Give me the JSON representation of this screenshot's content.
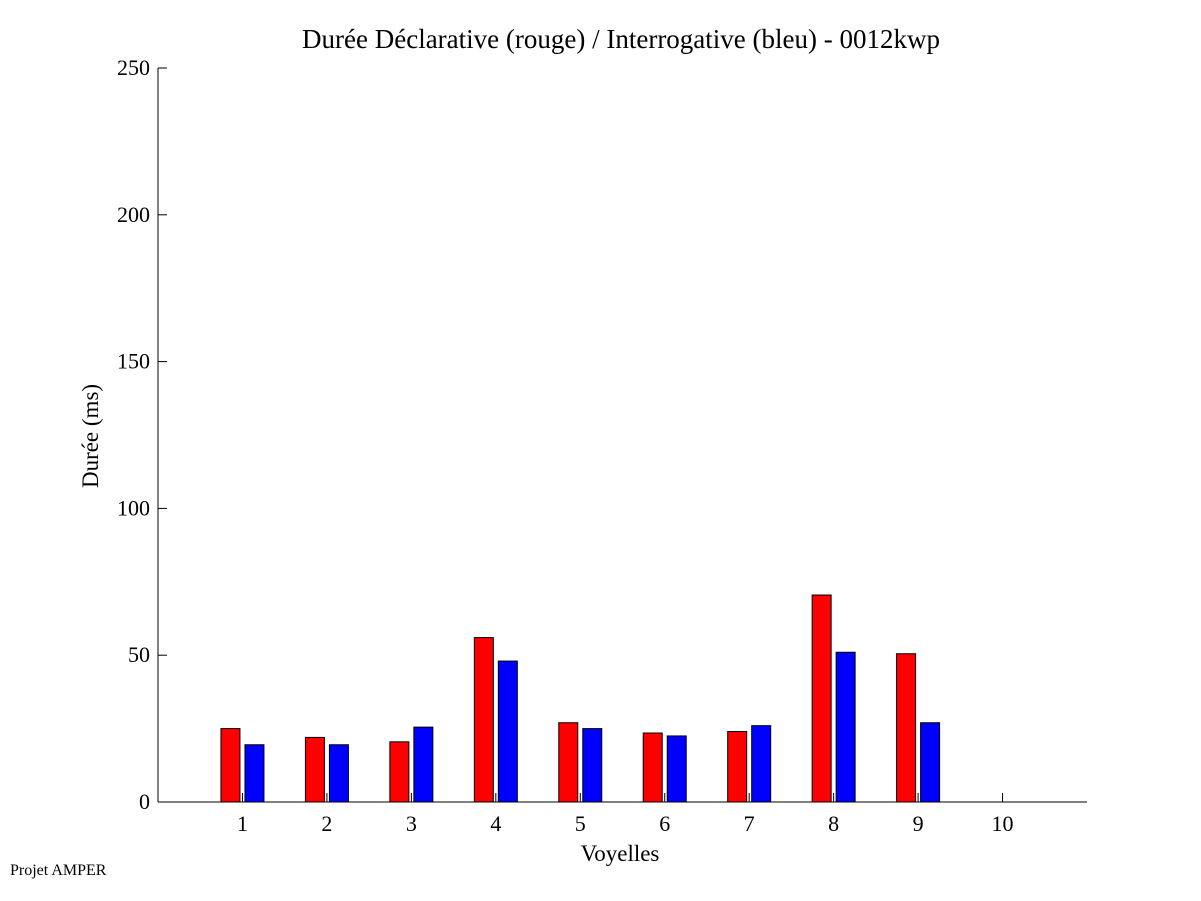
{
  "chart_data": {
    "type": "bar",
    "title": "Durée Déclarative (rouge) / Interrogative (bleu) - 0012kwp",
    "xlabel": "Voyelles",
    "ylabel": "Durée (ms)",
    "categories": [
      "1",
      "2",
      "3",
      "4",
      "5",
      "6",
      "7",
      "8",
      "9",
      "10"
    ],
    "ylim": [
      0,
      250
    ],
    "yticks": [
      0,
      50,
      100,
      150,
      200,
      250
    ],
    "xlim": [
      0,
      11
    ],
    "grid": false,
    "legend": "none",
    "series": [
      {
        "color": "#ff0000",
        "values": [
          25,
          22,
          20.5,
          56,
          27,
          23.5,
          24,
          70.5,
          50.5,
          null
        ]
      },
      {
        "color": "#0000ff",
        "values": [
          19.5,
          19.5,
          25.5,
          48,
          25,
          22.5,
          26,
          51,
          27,
          null
        ]
      }
    ]
  },
  "footer": "Projet AMPER"
}
